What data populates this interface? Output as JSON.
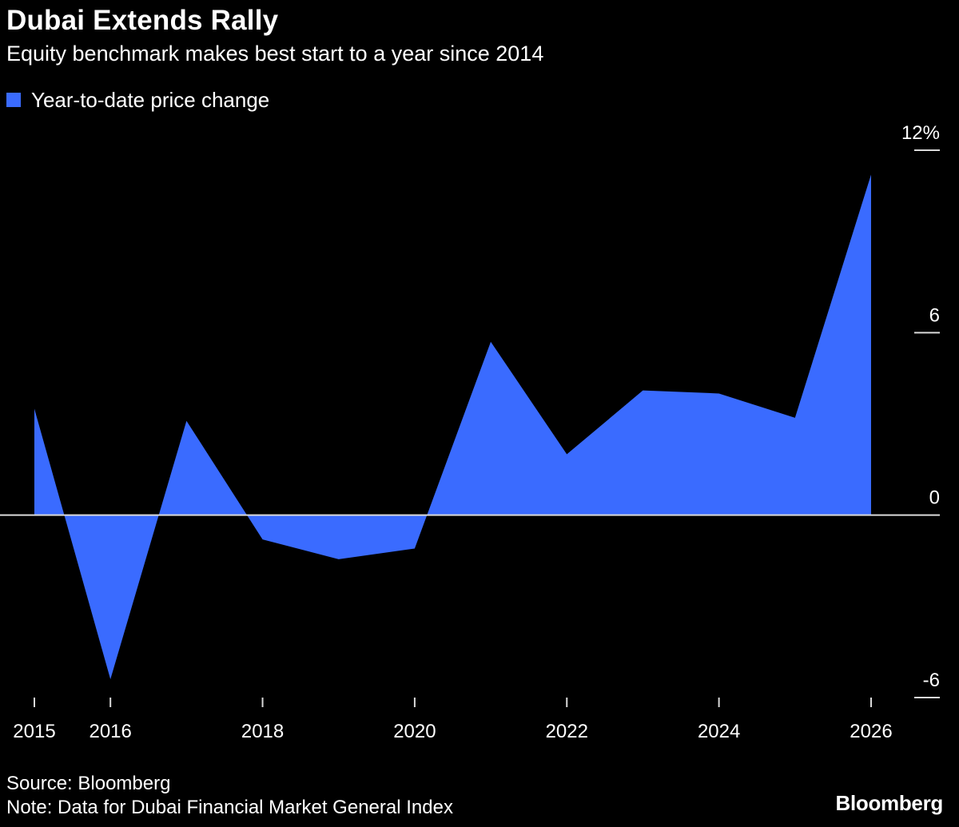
{
  "chart_data": {
    "type": "area",
    "title": "Dubai Extends Rally",
    "subtitle": "Equity benchmark makes best start to a year since 2014",
    "legend": [
      {
        "label": "Year-to-date price change",
        "color": "#3a6bff"
      }
    ],
    "x": [
      2015,
      2016,
      2017,
      2018,
      2019,
      2020,
      2021,
      2022,
      2023,
      2024,
      2025,
      2026
    ],
    "series": [
      {
        "name": "Year-to-date price change",
        "values": [
          3.5,
          -5.4,
          3.1,
          -0.8,
          -1.45,
          -1.1,
          5.7,
          2.0,
          4.1,
          4.0,
          3.2,
          11.2
        ]
      }
    ],
    "xlim": [
      2015,
      2026
    ],
    "ylim": [
      -6,
      12
    ],
    "x_ticks": [
      {
        "value": 2015,
        "label": "2015"
      },
      {
        "value": 2016,
        "label": "2016"
      },
      {
        "value": 2018,
        "label": "2018"
      },
      {
        "value": 2020,
        "label": "2020"
      },
      {
        "value": 2022,
        "label": "2022"
      },
      {
        "value": 2024,
        "label": "2024"
      },
      {
        "value": 2026,
        "label": "2026"
      }
    ],
    "y_ticks": [
      {
        "value": 12,
        "label": "12%"
      },
      {
        "value": 6,
        "label": "6"
      },
      {
        "value": 0,
        "label": "0"
      },
      {
        "value": -6,
        "label": "-6"
      }
    ],
    "y_axis_side": "right",
    "grid": false,
    "legend_position": "top-left"
  },
  "footer": {
    "source": "Source: Bloomberg",
    "note": "Note: Data for Dubai Financial Market General Index",
    "brand": "Bloomberg"
  },
  "colors": {
    "background": "#000000",
    "area_fill": "#3a6bff",
    "text": "#ffffff",
    "axis": "#d9d9d9"
  }
}
